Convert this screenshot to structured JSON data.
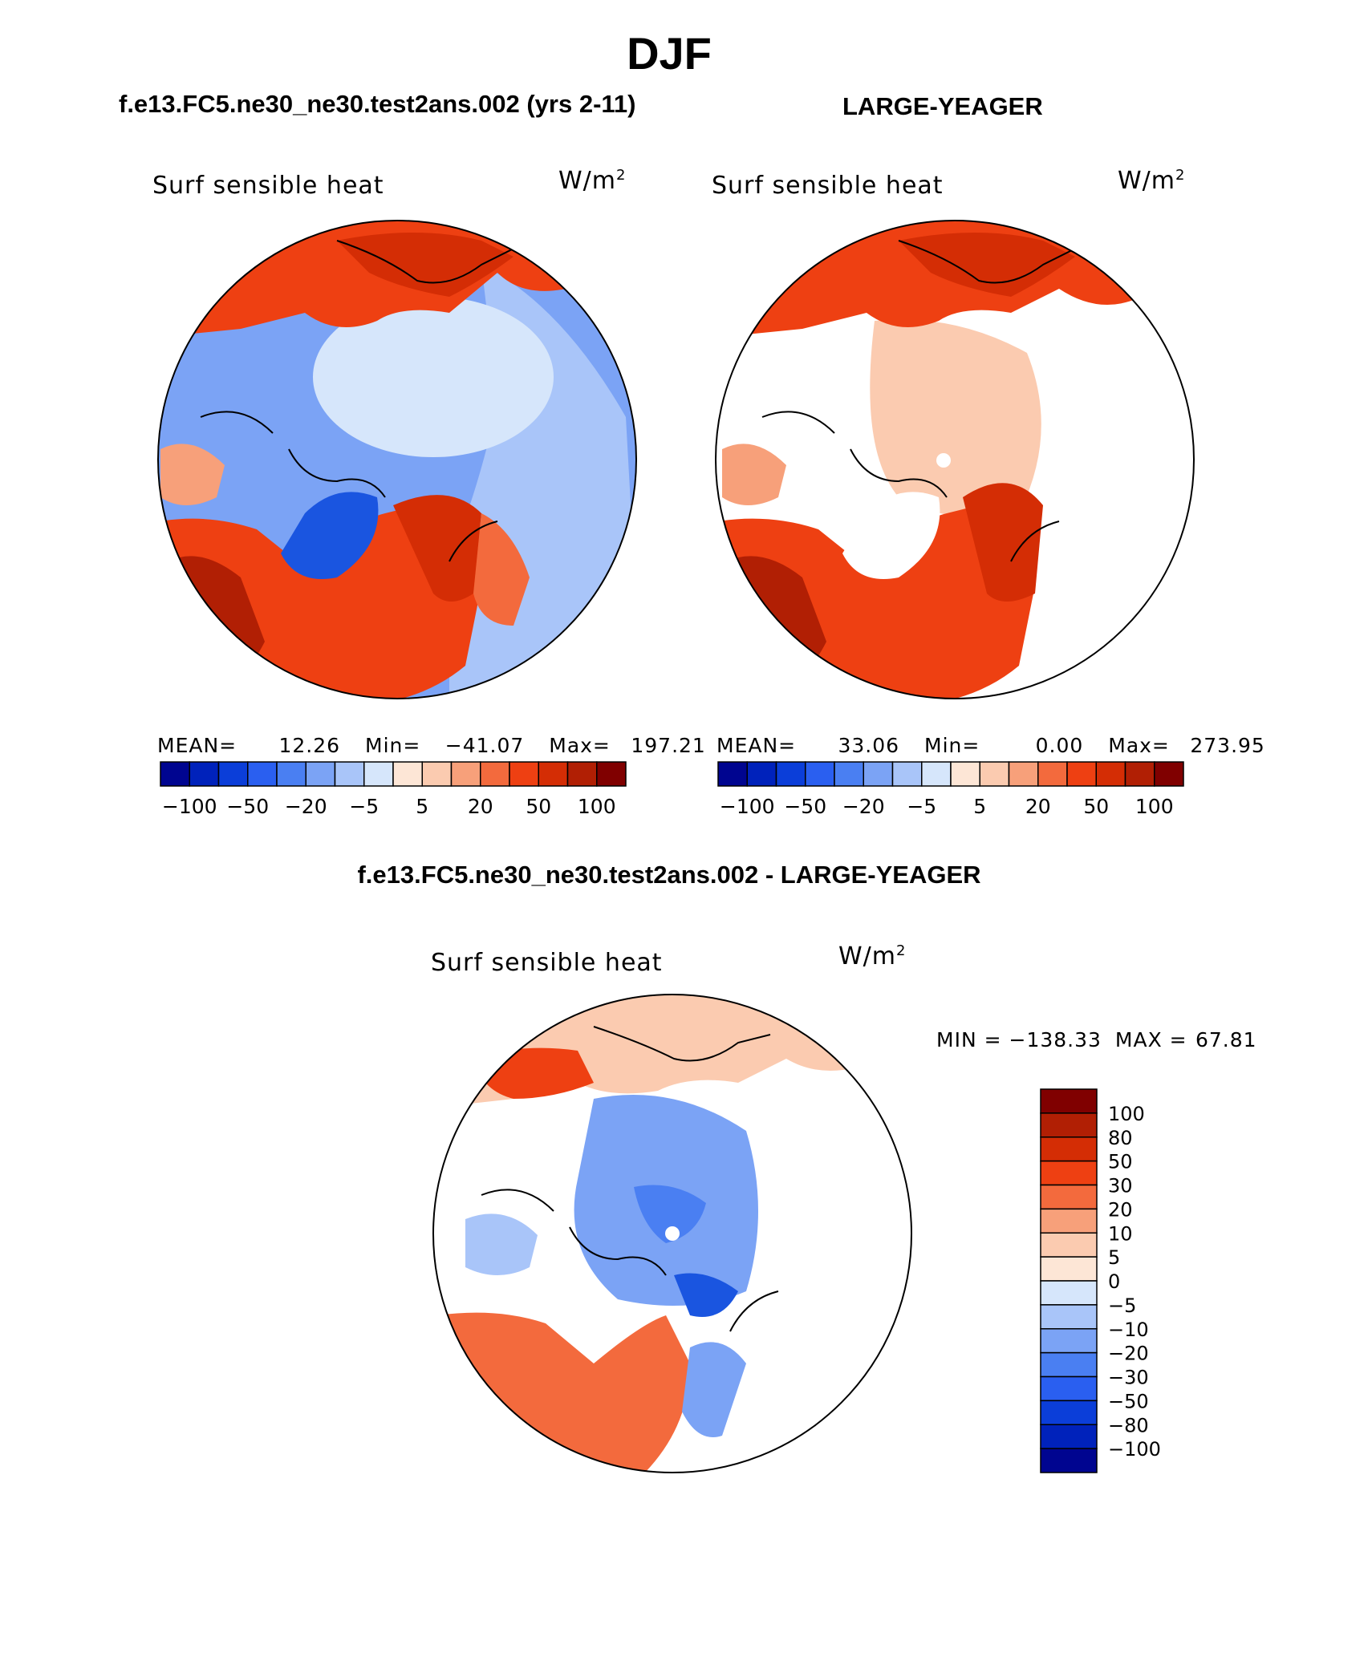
{
  "title": "DJF",
  "case_label": "f.e13.FC5.ne30_ne30.test2ans.002 (yrs 2-11)",
  "obs_label": "LARGE-YEAGER",
  "diff_label": "f.e13.FC5.ne30_ne30.test2ans.002 - LARGE-YEAGER",
  "colors": {
    "water_cold": "#5b8ff0",
    "deep_blue": "#1a55e0",
    "land_white": "#ffffff",
    "coast": "#000000"
  },
  "chart_data": [
    {
      "type": "heatmap",
      "projection": "north polar stereographic",
      "variable": "Surf sensible heat",
      "units": "W/m",
      "units_exp": "2",
      "stats": {
        "mean_label": "MEAN=",
        "mean": "12.26",
        "min_label": "Min=",
        "min": "−41.07",
        "max_label": "Max=",
        "max": "197.21"
      },
      "colorbar": {
        "orientation": "horizontal",
        "levels": [
          -100,
          -75,
          -50,
          -30,
          -20,
          -10,
          -5,
          0,
          5,
          10,
          20,
          30,
          50,
          75,
          100
        ],
        "tick_labels": [
          "−100",
          "−50",
          "−20",
          "−5",
          "5",
          "20",
          "50",
          "100"
        ],
        "colors": [
          "#000590",
          "#0022bb",
          "#0b3ed9",
          "#2a5ff0",
          "#4a7ff2",
          "#7ba3f5",
          "#a9c5f9",
          "#d6e6fb",
          "#fde6d6",
          "#fbcbb0",
          "#f7a07a",
          "#f36a3d",
          "#ee4012",
          "#d42d05",
          "#b11f04",
          "#800000"
        ]
      }
    },
    {
      "type": "heatmap",
      "projection": "north polar stereographic",
      "variable": "Surf sensible heat",
      "units": "W/m",
      "units_exp": "2",
      "stats": {
        "mean_label": "MEAN=",
        "mean": "33.06",
        "min_label": "Min=",
        "min": "0.00",
        "max_label": "Max=",
        "max": "273.95"
      },
      "colorbar": {
        "orientation": "horizontal",
        "levels": [
          -100,
          -75,
          -50,
          -30,
          -20,
          -10,
          -5,
          0,
          5,
          10,
          20,
          30,
          50,
          75,
          100
        ],
        "tick_labels": [
          "−100",
          "−50",
          "−20",
          "−5",
          "5",
          "20",
          "50",
          "100"
        ],
        "colors": [
          "#000590",
          "#0022bb",
          "#0b3ed9",
          "#2a5ff0",
          "#4a7ff2",
          "#7ba3f5",
          "#a9c5f9",
          "#d6e6fb",
          "#fde6d6",
          "#fbcbb0",
          "#f7a07a",
          "#f36a3d",
          "#ee4012",
          "#d42d05",
          "#b11f04",
          "#800000"
        ]
      }
    },
    {
      "type": "heatmap",
      "projection": "north polar stereographic",
      "variable": "Surf sensible heat",
      "units": "W/m",
      "units_exp": "2",
      "stats": {
        "min_label": "MIN =",
        "min": "−138.33",
        "max_label": "MAX =",
        "max": "67.81"
      },
      "colorbar": {
        "orientation": "vertical",
        "levels": [
          100,
          80,
          50,
          30,
          20,
          10,
          5,
          0,
          -5,
          -10,
          -20,
          -30,
          -50,
          -80,
          -100
        ],
        "tick_labels": [
          "100",
          "80",
          "50",
          "30",
          "20",
          "10",
          "5",
          "0",
          "−5",
          "−10",
          "−20",
          "−30",
          "−50",
          "−80",
          "−100"
        ],
        "colors": [
          "#800000",
          "#b11f04",
          "#d42d05",
          "#ee4012",
          "#f36a3d",
          "#f7a07a",
          "#fbcbb0",
          "#fde6d6",
          "#d6e6fb",
          "#a9c5f9",
          "#7ba3f5",
          "#4a7ff2",
          "#2a5ff0",
          "#0b3ed9",
          "#0022bb",
          "#000590"
        ]
      }
    }
  ]
}
